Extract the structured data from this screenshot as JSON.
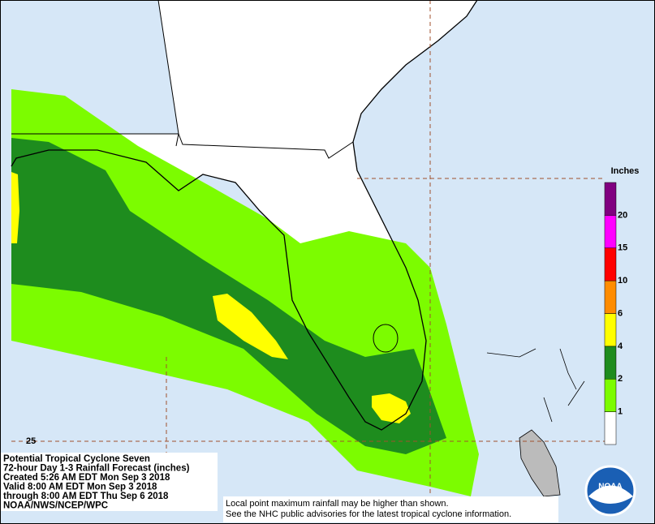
{
  "map": {
    "legend": {
      "title": "Inches",
      "labels": [
        1,
        2,
        4,
        6,
        10,
        15,
        20
      ],
      "colors": [
        "#ffffff",
        "#7cfc00",
        "#1e8c1e",
        "#ffff00",
        "#ff8c00",
        "#ff0000",
        "#ff00ff",
        "#800080"
      ]
    },
    "grid_label": "25",
    "info": [
      "Potential Tropical Cyclone Seven",
      "72-hour Day 1-3 Rainfall Forecast (inches)",
      "Created 5:26 AM EDT Mon Sep 3 2018",
      "Valid 8:00 AM EDT Mon Sep 3 2018",
      "through 8:00 AM EDT Thu Sep 6 2018",
      "NOAA/NWS/NCEP/WPC"
    ],
    "disclaimer": [
      "Local point maximum rainfall may be higher than shown.",
      "See the NHC public advisories for the latest tropical cyclone information."
    ],
    "logo": "NOAA"
  }
}
